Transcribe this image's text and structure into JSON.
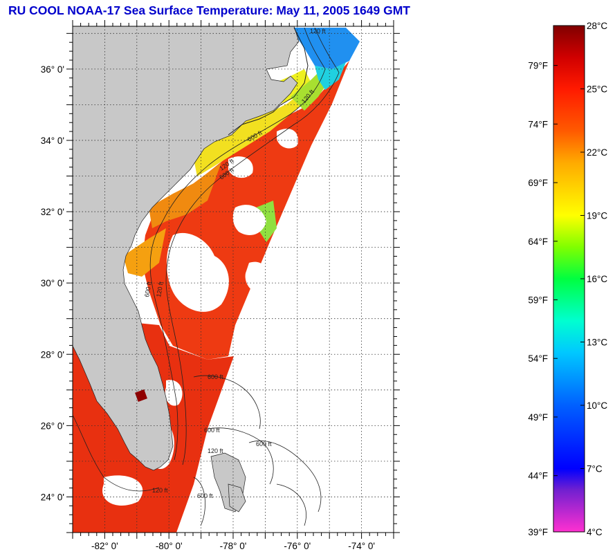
{
  "title": "RU COOL  NOAA-17  Sea Surface Temperature:  May 11, 2005 1649 GMT",
  "map": {
    "lat_labels": [
      {
        "value": 36,
        "label": "36° 0'"
      },
      {
        "value": 34,
        "label": "34° 0'"
      },
      {
        "value": 32,
        "label": "32° 0'"
      },
      {
        "value": 30,
        "label": "30° 0'"
      },
      {
        "value": 28,
        "label": "28° 0'"
      },
      {
        "value": 26,
        "label": "26° 0'"
      },
      {
        "value": 24,
        "label": "24° 0'"
      }
    ],
    "lon_labels": [
      {
        "value": -82,
        "label": "-82° 0'"
      },
      {
        "value": -80,
        "label": "-80° 0'"
      },
      {
        "value": -78,
        "label": "-78° 0'"
      },
      {
        "value": -76,
        "label": "-76° 0'"
      },
      {
        "value": -74,
        "label": "-74° 0'"
      }
    ],
    "lat_range": [
      23,
      37.2
    ],
    "lon_range": [
      -83,
      -73
    ],
    "grid": "dotted",
    "land_color": "#c8c8c8",
    "no_data_color": "#ffffff",
    "isobath_labels": [
      "120 ft",
      "600 ft",
      "120 ft",
      "600 ft",
      "120 ft",
      "600 ft",
      "120 ft",
      "600 ft",
      "600 ft",
      "120 ft",
      "600 ft",
      "120 ft",
      "600 ft"
    ]
  },
  "colorbar": {
    "celsius_labels": [
      "28°C",
      "25°C",
      "22°C",
      "19°C",
      "16°C",
      "13°C",
      "10°C",
      "7°C",
      "4°C"
    ],
    "fahrenheit_labels": [
      "79°F",
      "74°F",
      "69°F",
      "64°F",
      "59°F",
      "54°F",
      "49°F",
      "44°F",
      "39°F"
    ],
    "celsius_range": [
      4,
      28
    ],
    "color_stops": [
      {
        "c": 28,
        "color": "#800000"
      },
      {
        "c": 26.5,
        "color": "#d00000"
      },
      {
        "c": 25,
        "color": "#ff1a00"
      },
      {
        "c": 23,
        "color": "#ff5a00"
      },
      {
        "c": 21.5,
        "color": "#ffaa00"
      },
      {
        "c": 19,
        "color": "#ffff00"
      },
      {
        "c": 17.5,
        "color": "#80ff00"
      },
      {
        "c": 16,
        "color": "#00ff40"
      },
      {
        "c": 14,
        "color": "#00ffd0"
      },
      {
        "c": 12.5,
        "color": "#00c8ff"
      },
      {
        "c": 10,
        "color": "#0060ff"
      },
      {
        "c": 7,
        "color": "#0000ff"
      },
      {
        "c": 6,
        "color": "#7020d0"
      },
      {
        "c": 4,
        "color": "#ff30d0"
      }
    ]
  }
}
